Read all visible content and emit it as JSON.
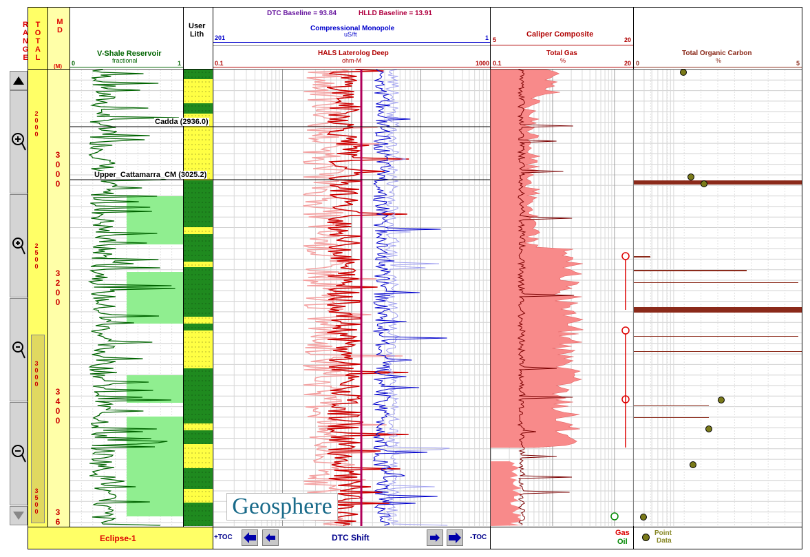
{
  "scale_strip": {
    "total_range_label": "TOTAL RANGE",
    "ticks": [
      "2000",
      "2500",
      "3000",
      "3500"
    ]
  },
  "md_strip": {
    "label": "MD",
    "unit": "(M)",
    "ticks": [
      "3000",
      "3200",
      "3400",
      "36"
    ]
  },
  "tracks": {
    "vshale": {
      "title": "V-Shale Reservoir",
      "unit": "fractional",
      "min": "0",
      "max": "1"
    },
    "lith": {
      "title_line1": "User",
      "title_line2": "Lith"
    },
    "resistivity": {
      "dtc_baseline": "DTC Baseline = 93.84",
      "hlld_baseline": "HLLD Baseline = 13.91",
      "sonic_title": "Compressional Monopole",
      "sonic_unit": "uS/ft",
      "sonic_min": "201",
      "sonic_max": "1",
      "res_title": "HALS Laterolog Deep",
      "res_unit": "ohm-M",
      "res_min": "0.1",
      "res_max": "1000"
    },
    "gas": {
      "caliper_title": "Caliper Composite",
      "caliper_min": "5",
      "caliper_max": "20",
      "gas_title": "Total Gas",
      "gas_unit": "%",
      "gas_min": "0.1",
      "gas_max": "20"
    },
    "toc": {
      "title": "Total Organic Carbon",
      "unit": "%",
      "min": "0",
      "max": "5"
    }
  },
  "formation_tops": [
    {
      "label": "Cadda (2936.0)"
    },
    {
      "label": "Upper_Cattamarra_CM (3025.2)"
    }
  ],
  "footer": {
    "well_name": "Eclipse-1",
    "plus_toc": "+TOC",
    "dtc_shift": "DTC Shift",
    "minus_toc": "-TOC",
    "gas_legend": "Gas",
    "oil_legend": "Oil",
    "point_data_line1": "Point",
    "point_data_line2": "Data"
  },
  "watermark": "Geosphere",
  "colors": {
    "scale_yellow": "#ffff66",
    "vshale_green": "#006400",
    "sand_fill": "#90ee90",
    "res_red": "#cc0000",
    "res_pink": "#f4a0a0",
    "sonic_blue": "#0000cc",
    "baseline_magenta": "#b0005a",
    "gas_fill": "#f88a8a",
    "toc_brown": "#8b2a1a",
    "header_red": "#b00000",
    "header_purple": "#6a1aa0"
  }
}
